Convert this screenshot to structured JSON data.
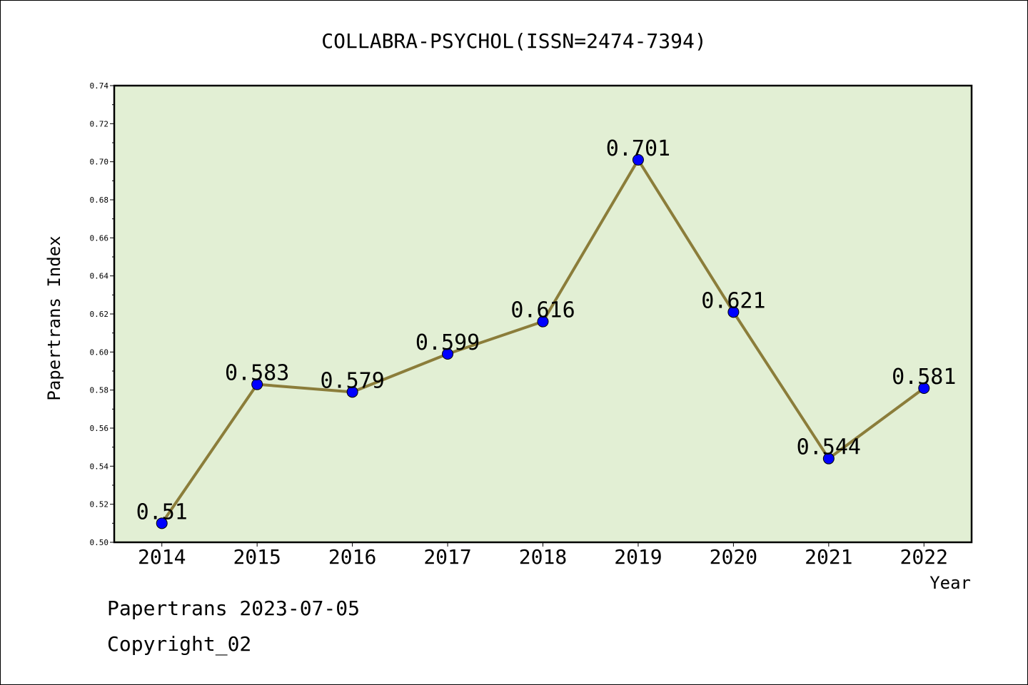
{
  "chart_data": {
    "type": "line",
    "title": "COLLABRA-PSYCHOL(ISSN=2474-7394)",
    "xlabel": "Year",
    "ylabel": "Papertrans Index",
    "categories": [
      "2014",
      "2015",
      "2016",
      "2017",
      "2018",
      "2019",
      "2020",
      "2021",
      "2022"
    ],
    "values": [
      0.51,
      0.583,
      0.579,
      0.599,
      0.616,
      0.701,
      0.621,
      0.544,
      0.581
    ],
    "data_labels": [
      "0.51",
      "0.583",
      "0.579",
      "0.599",
      "0.616",
      "0.701",
      "0.621",
      "0.544",
      "0.581"
    ],
    "ylim": [
      0.5,
      0.74
    ],
    "yticks": [
      "0.50",
      "0.52",
      "0.54",
      "0.56",
      "0.58",
      "0.60",
      "0.62",
      "0.64",
      "0.66",
      "0.68",
      "0.70",
      "0.72",
      "0.74"
    ],
    "grid": false,
    "colors": {
      "plot_background": "#e2efd4",
      "line": "#8b7d3a",
      "marker": "#0000ff"
    }
  },
  "footer": {
    "date_line": "Papertrans 2023-07-05",
    "copyright": "Copyright_02"
  }
}
